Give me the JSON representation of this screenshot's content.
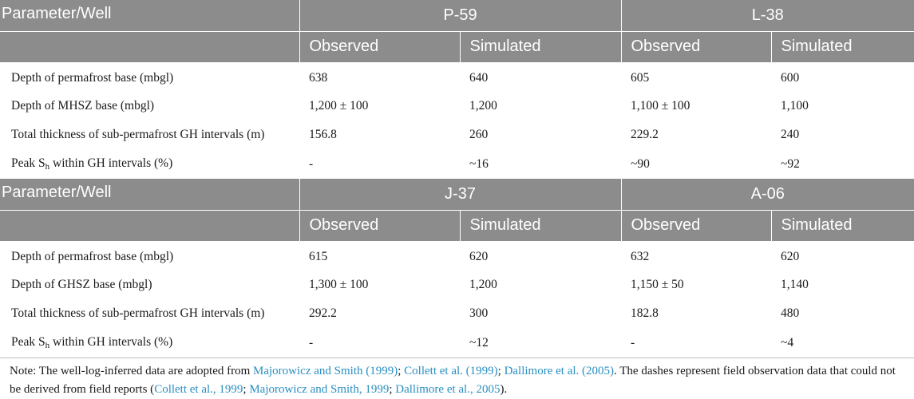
{
  "table": {
    "sections": [
      {
        "param_header": "Parameter/Well",
        "wells": [
          "P-59",
          "L-38"
        ],
        "sub_headers": [
          "Observed",
          "Simulated",
          "Observed",
          "Simulated"
        ],
        "rows": [
          {
            "label": "Depth of permafrost base (mbgl)",
            "values": [
              "638",
              "640",
              "605",
              "600"
            ]
          },
          {
            "label": "Depth of MHSZ base (mbgl)",
            "values": [
              "1,200 ± 100",
              "1,200",
              "1,100 ± 100",
              "1,100"
            ]
          },
          {
            "label": "Total thickness of sub-permafrost GH intervals (m)",
            "values": [
              "156.8",
              "260",
              "229.2",
              "240"
            ]
          },
          {
            "label_pre": "Peak S",
            "label_sub": "h",
            "label_post": " within GH intervals (%)",
            "values": [
              "-",
              "~16",
              "~90",
              "~92"
            ]
          }
        ]
      },
      {
        "param_header": "Parameter/Well",
        "wells": [
          "J-37",
          "A-06"
        ],
        "sub_headers": [
          "Observed",
          "Simulated",
          "Observed",
          "Simulated"
        ],
        "rows": [
          {
            "label": "Depth of permafrost base (mbgl)",
            "values": [
              "615",
              "620",
              "632",
              "620"
            ]
          },
          {
            "label": "Depth of GHSZ base (mbgl)",
            "values": [
              "1,300 ± 100",
              "1,200",
              "1,150 ± 50",
              "1,140"
            ]
          },
          {
            "label": "Total thickness of sub-permafrost GH intervals (m)",
            "values": [
              "292.2",
              "300",
              "182.8",
              "480"
            ]
          },
          {
            "label_pre": "Peak S",
            "label_sub": "h",
            "label_post": " within GH intervals (%)",
            "values": [
              "-",
              "~12",
              "-",
              "~4"
            ]
          }
        ]
      }
    ]
  },
  "note": {
    "prefix": "Note: The well-log-inferred data are adopted from ",
    "ref1": "Majorowicz and Smith (1999)",
    "sep1": "; ",
    "ref2": "Collett et al. (1999)",
    "sep2": "; ",
    "ref3": "Dallimore et al. (2005)",
    "middle": ". The dashes represent field observation data that could not be derived from field reports (",
    "ref4": "Collett et al., 1999",
    "sep3": "; ",
    "ref5": "Majorowicz and Smith, 1999",
    "sep4": "; ",
    "ref6": "Dallimore et al., 2005",
    "suffix": ")."
  },
  "colors": {
    "header_bg": "#8c8c8c",
    "link": "#2a8fc1"
  }
}
